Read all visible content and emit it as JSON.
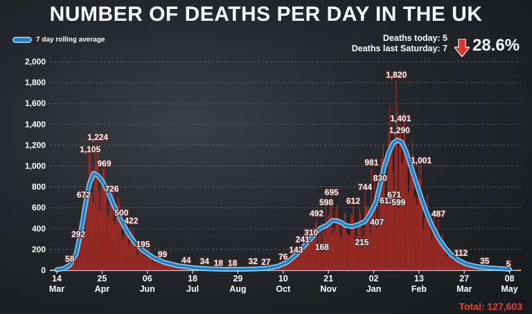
{
  "title": "NUMBER OF DEATHS PER DAY IN THE UK",
  "legend_label": "7 day rolling average",
  "stats": {
    "today": "Deaths today: 5",
    "last_saturday": "Deaths last Saturday: 7",
    "percent": "28.6%",
    "arrow_icon": "down-arrow-icon",
    "arrow_color": "#e0342c"
  },
  "total": "Total: 127,603",
  "colors": {
    "bars": "#a82a24",
    "line": "#1e7fc6",
    "line_glow": "#8fd3f7",
    "total": "#e8443a"
  },
  "chart_data": {
    "type": "bar",
    "ylim": [
      0,
      2000
    ],
    "yticks": [
      "0",
      "200",
      "400",
      "600",
      "800",
      "1,000",
      "1,200",
      "1,400",
      "1,600",
      "1,800",
      "2,000"
    ],
    "x_ticks": [
      {
        "day": "14",
        "month": "Mar",
        "d": 0
      },
      {
        "day": "25",
        "month": "Apr",
        "d": 42
      },
      {
        "day": "06",
        "month": "Jun",
        "d": 84
      },
      {
        "day": "18",
        "month": "Jul",
        "d": 126
      },
      {
        "day": "29",
        "month": "Aug",
        "d": 168
      },
      {
        "day": "10",
        "month": "Oct",
        "d": 210
      },
      {
        "day": "21",
        "month": "Nov",
        "d": 252
      },
      {
        "day": "02",
        "month": "Jan",
        "d": 294
      },
      {
        "day": "13",
        "month": "Feb",
        "d": 336
      },
      {
        "day": "27",
        "month": "Mar",
        "d": 378
      },
      {
        "day": "08",
        "month": "May",
        "d": 420
      }
    ],
    "labels": [
      {
        "text": "58",
        "d": 12,
        "v": 58
      },
      {
        "text": "292",
        "d": 20,
        "v": 292
      },
      {
        "text": "672",
        "d": 25,
        "v": 672
      },
      {
        "text": "1,105",
        "d": 31,
        "v": 1105
      },
      {
        "text": "1,224",
        "d": 38,
        "v": 1224
      },
      {
        "text": "969",
        "d": 44,
        "v": 969
      },
      {
        "text": "726",
        "d": 51,
        "v": 726
      },
      {
        "text": "500",
        "d": 60,
        "v": 500
      },
      {
        "text": "422",
        "d": 69,
        "v": 422
      },
      {
        "text": "195",
        "d": 80,
        "v": 195
      },
      {
        "text": "99",
        "d": 98,
        "v": 99
      },
      {
        "text": "44",
        "d": 120,
        "v": 44
      },
      {
        "text": "34",
        "d": 137,
        "v": 34
      },
      {
        "text": "18",
        "d": 150,
        "v": 18
      },
      {
        "text": "18",
        "d": 163,
        "v": 18
      },
      {
        "text": "32",
        "d": 182,
        "v": 32
      },
      {
        "text": "27",
        "d": 194,
        "v": 27
      },
      {
        "text": "76",
        "d": 210,
        "v": 76
      },
      {
        "text": "143",
        "d": 222,
        "v": 143
      },
      {
        "text": "241",
        "d": 228,
        "v": 241
      },
      {
        "text": "310",
        "d": 236,
        "v": 310
      },
      {
        "text": "492",
        "d": 241,
        "v": 492
      },
      {
        "text": "168",
        "d": 246,
        "v": 168
      },
      {
        "text": "598",
        "d": 250,
        "v": 598
      },
      {
        "text": "695",
        "d": 255,
        "v": 695
      },
      {
        "text": "612",
        "d": 275,
        "v": 612
      },
      {
        "text": "215",
        "d": 283,
        "v": 215
      },
      {
        "text": "744",
        "d": 286,
        "v": 744
      },
      {
        "text": "981",
        "d": 292,
        "v": 981
      },
      {
        "text": "407",
        "d": 297,
        "v": 407
      },
      {
        "text": "830",
        "d": 300,
        "v": 830
      },
      {
        "text": "613",
        "d": 306,
        "v": 613
      },
      {
        "text": "671",
        "d": 313,
        "v": 671
      },
      {
        "text": "599",
        "d": 317,
        "v": 599
      },
      {
        "text": "1,820",
        "d": 315,
        "v": 1820
      },
      {
        "text": "1,401",
        "d": 319,
        "v": 1401
      },
      {
        "text": "1,290",
        "d": 318,
        "v": 1290
      },
      {
        "text": "1,001",
        "d": 338,
        "v": 1001
      },
      {
        "text": "487",
        "d": 354,
        "v": 487
      },
      {
        "text": "112",
        "d": 375,
        "v": 112
      },
      {
        "text": "35",
        "d": 397,
        "v": 35
      },
      {
        "text": "5",
        "d": 419,
        "v": 5
      }
    ],
    "rolling_average": [
      [
        0,
        5
      ],
      [
        6,
        15
      ],
      [
        12,
        50
      ],
      [
        18,
        160
      ],
      [
        22,
        350
      ],
      [
        26,
        600
      ],
      [
        30,
        820
      ],
      [
        34,
        930
      ],
      [
        38,
        910
      ],
      [
        42,
        860
      ],
      [
        48,
        740
      ],
      [
        54,
        600
      ],
      [
        60,
        470
      ],
      [
        66,
        360
      ],
      [
        72,
        270
      ],
      [
        80,
        190
      ],
      [
        90,
        120
      ],
      [
        100,
        75
      ],
      [
        112,
        45
      ],
      [
        126,
        25
      ],
      [
        140,
        15
      ],
      [
        155,
        10
      ],
      [
        170,
        10
      ],
      [
        185,
        13
      ],
      [
        195,
        20
      ],
      [
        205,
        40
      ],
      [
        214,
        80
      ],
      [
        222,
        150
      ],
      [
        230,
        240
      ],
      [
        238,
        330
      ],
      [
        244,
        400
      ],
      [
        250,
        430
      ],
      [
        256,
        480
      ],
      [
        262,
        470
      ],
      [
        268,
        430
      ],
      [
        274,
        420
      ],
      [
        280,
        440
      ],
      [
        286,
        470
      ],
      [
        290,
        530
      ],
      [
        296,
        650
      ],
      [
        300,
        830
      ],
      [
        304,
        1000
      ],
      [
        308,
        1130
      ],
      [
        312,
        1220
      ],
      [
        316,
        1248
      ],
      [
        320,
        1230
      ],
      [
        324,
        1140
      ],
      [
        330,
        950
      ],
      [
        336,
        760
      ],
      [
        342,
        580
      ],
      [
        348,
        430
      ],
      [
        354,
        310
      ],
      [
        360,
        220
      ],
      [
        366,
        150
      ],
      [
        372,
        100
      ],
      [
        380,
        60
      ],
      [
        390,
        35
      ],
      [
        400,
        25
      ],
      [
        410,
        18
      ],
      [
        420,
        10
      ]
    ]
  }
}
